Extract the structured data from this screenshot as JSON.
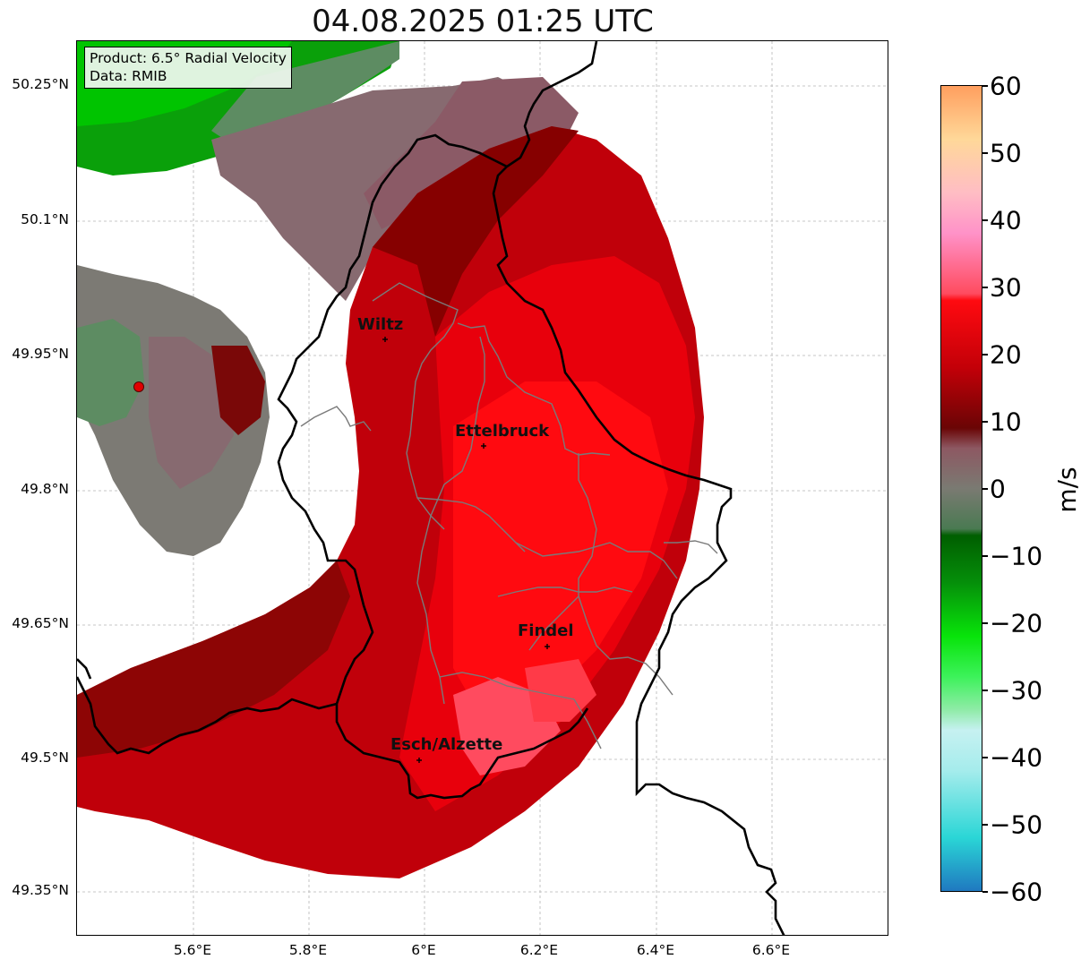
{
  "title": "04.08.2025 01:25 UTC",
  "info": {
    "product": "Product: 6.5° Radial Velocity",
    "data_source": "Data: RMIB"
  },
  "axes": {
    "lat_ticks": [
      "50.25°N",
      "50.1°N",
      "49.95°N",
      "49.8°N",
      "49.65°N",
      "49.5°N",
      "49.35°N"
    ],
    "lon_ticks": [
      "5.6°E",
      "5.8°E",
      "6°E",
      "6.2°E",
      "6.4°E",
      "6.6°E"
    ]
  },
  "colorbar": {
    "unit": "m/s",
    "ticks": [
      "60",
      "50",
      "40",
      "30",
      "20",
      "10",
      "0",
      "−10",
      "−20",
      "−30",
      "−40",
      "−50",
      "−60"
    ],
    "min": -60,
    "max": 60,
    "stops": [
      {
        "v": -60,
        "c": "#1f78c0"
      },
      {
        "v": -52,
        "c": "#2ad6d6"
      },
      {
        "v": -42,
        "c": "#a5ecec"
      },
      {
        "v": -36,
        "c": "#c6f1f1"
      },
      {
        "v": -33,
        "c": "#90eba8"
      },
      {
        "v": -28,
        "c": "#3cf25a"
      },
      {
        "v": -22,
        "c": "#08e40a"
      },
      {
        "v": -14,
        "c": "#058f0a"
      },
      {
        "v": -7,
        "c": "#005e00"
      },
      {
        "v": -6,
        "c": "#4a7a52"
      },
      {
        "v": 0,
        "c": "#7a7a72"
      },
      {
        "v": 6,
        "c": "#8d5862"
      },
      {
        "v": 9,
        "c": "#6a0505"
      },
      {
        "v": 18,
        "c": "#c30008"
      },
      {
        "v": 28,
        "c": "#ff0a10"
      },
      {
        "v": 29,
        "c": "#ff4b5f"
      },
      {
        "v": 38,
        "c": "#ff92c8"
      },
      {
        "v": 44,
        "c": "#ffbdc4"
      },
      {
        "v": 52,
        "c": "#ffd899"
      },
      {
        "v": 60,
        "c": "#ff9e5e"
      }
    ]
  },
  "cities": [
    {
      "name": "Wiltz"
    },
    {
      "name": "Ettelbruck"
    },
    {
      "name": "Findel"
    },
    {
      "name": "Esch/Alzette"
    }
  ],
  "colors": {
    "inbound": "#d80008",
    "near_zero": "#876a70",
    "outbound": "#0aa00a",
    "border": "#000000",
    "canton": "#7a7a7a",
    "radar_site": "#e00000"
  }
}
